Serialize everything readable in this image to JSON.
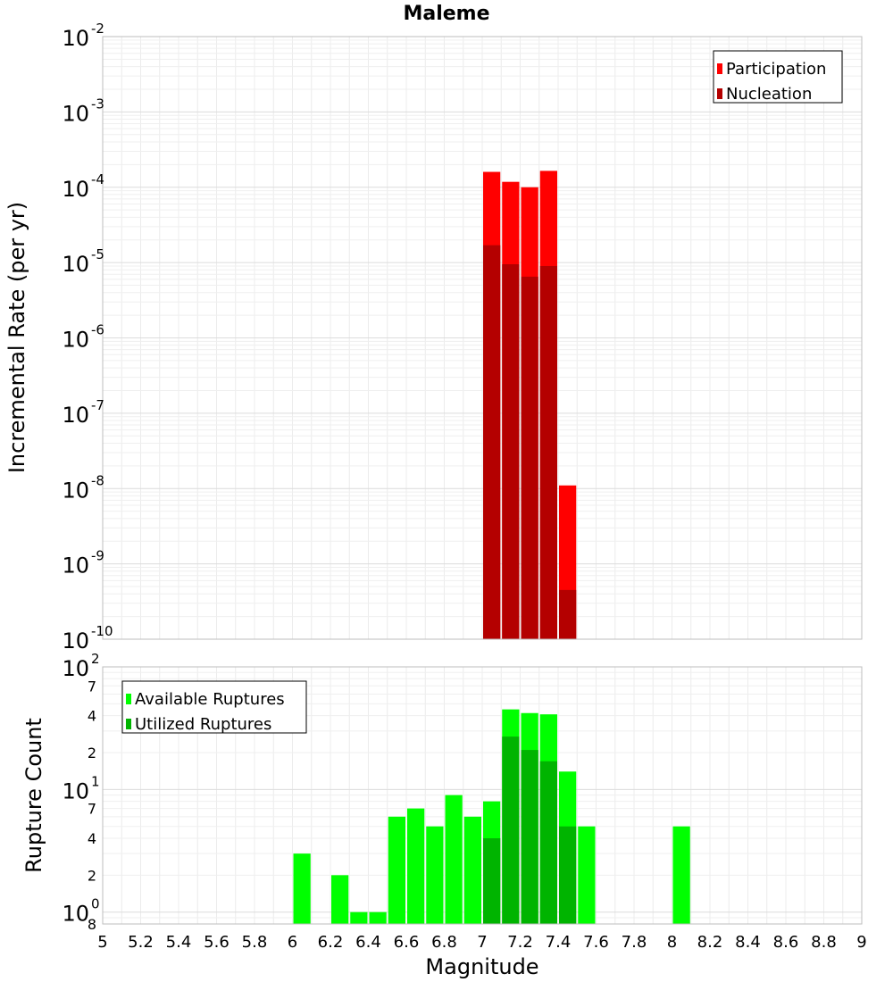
{
  "chart_data": [
    {
      "type": "bar",
      "title": "Maleme",
      "ylabel": "Incremental Rate (per yr)",
      "xlabel": "",
      "y_scale": "log",
      "ylim": [
        1e-10,
        0.01
      ],
      "xlim": [
        5,
        9
      ],
      "grid": true,
      "legend_position": "top-right",
      "y_tick_labels": [
        {
          "base": "10",
          "exp": "-2",
          "value": 0.01
        },
        {
          "base": "10",
          "exp": "-3",
          "value": 0.001
        },
        {
          "base": "10",
          "exp": "-4",
          "value": 0.0001
        },
        {
          "base": "10",
          "exp": "-5",
          "value": 1e-05
        },
        {
          "base": "10",
          "exp": "-6",
          "value": 1e-06
        },
        {
          "base": "10",
          "exp": "-7",
          "value": 1e-07
        },
        {
          "base": "10",
          "exp": "-8",
          "value": 1e-08
        },
        {
          "base": "10",
          "exp": "-9",
          "value": 1e-09
        },
        {
          "base": "10",
          "exp": "-10",
          "value": 1e-10
        }
      ],
      "x": [
        7.05,
        7.15,
        7.25,
        7.35,
        7.45
      ],
      "series": [
        {
          "name": "Participation",
          "color": "#ff0000",
          "values": [
            0.00016,
            0.000118,
            0.0001,
            0.000165,
            1.1e-08
          ]
        },
        {
          "name": "Nucleation",
          "color": "#b40000",
          "values": [
            1.7e-05,
            9.5e-06,
            6.5e-06,
            9e-06,
            4.5e-10
          ]
        }
      ]
    },
    {
      "type": "bar",
      "title": "",
      "ylabel": "Rupture Count",
      "xlabel": "Magnitude",
      "y_scale": "log",
      "ylim": [
        0.8,
        100
      ],
      "xlim": [
        5,
        9
      ],
      "grid": true,
      "legend_position": "top-left",
      "y_tick_labels": [
        {
          "base": "10",
          "exp": "2",
          "value": 100
        },
        {
          "base": "10",
          "exp": "1",
          "value": 10
        },
        {
          "base": "10",
          "exp": "0",
          "value": 1
        }
      ],
      "y_minor_labels": [
        {
          "label": "7",
          "value": 70
        },
        {
          "label": "4",
          "value": 40
        },
        {
          "label": "2",
          "value": 20
        },
        {
          "label": "7",
          "value": 7
        },
        {
          "label": "4",
          "value": 4
        },
        {
          "label": "2",
          "value": 2
        },
        {
          "label": "8",
          "value": 0.8
        }
      ],
      "x_tick_labels": [
        "5",
        "5.2",
        "5.4",
        "5.6",
        "5.8",
        "6",
        "6.2",
        "6.4",
        "6.6",
        "6.8",
        "7",
        "7.2",
        "7.4",
        "7.6",
        "7.8",
        "8",
        "8.2",
        "8.4",
        "8.6",
        "8.8",
        "9"
      ],
      "x": [
        6.05,
        6.25,
        6.35,
        6.45,
        6.55,
        6.65,
        6.75,
        6.85,
        6.95,
        7.05,
        7.15,
        7.25,
        7.35,
        7.45,
        7.55,
        8.05
      ],
      "series": [
        {
          "name": "Available Ruptures",
          "color": "#00ff00",
          "values": [
            3,
            2,
            1,
            1,
            6,
            7,
            5,
            9,
            6,
            8,
            45,
            42,
            41,
            14,
            5,
            5
          ]
        },
        {
          "name": "Utilized Ruptures",
          "color": "#00b400",
          "values": [
            0,
            0,
            0,
            0,
            0,
            0,
            0,
            0,
            0,
            4,
            27,
            21,
            17,
            5,
            0,
            0
          ]
        }
      ]
    }
  ]
}
